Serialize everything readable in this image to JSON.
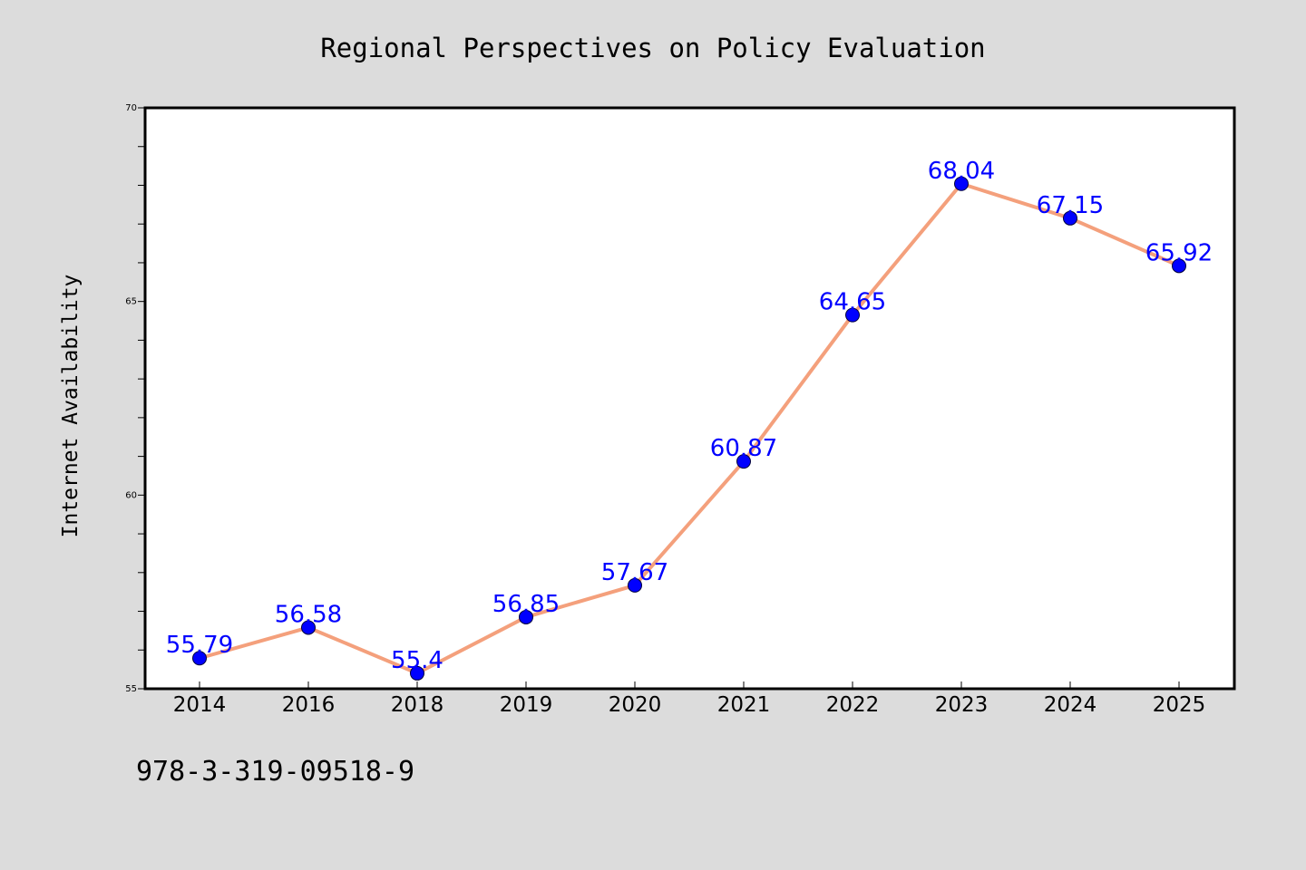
{
  "note": "978-3-319-09518-9",
  "colors": {
    "background": "#dcdcdc",
    "plot_background": "#ffffff",
    "line": "#f4a07c",
    "marker": "#0000ff",
    "data_label": "#0000ff"
  },
  "chart_data": {
    "type": "line",
    "title": "Regional Perspectives on Policy Evaluation",
    "xlabel": "",
    "ylabel": "Internet Availability",
    "categories": [
      "2014",
      "2016",
      "2018",
      "2019",
      "2020",
      "2021",
      "2022",
      "2023",
      "2024",
      "2025"
    ],
    "series": [
      {
        "values": [
          55.79,
          56.58,
          55.4,
          56.85,
          57.67,
          60.87,
          64.65,
          68.04,
          67.15,
          65.92
        ],
        "labels": [
          "55.79",
          "56.58",
          "55.4",
          "56.85",
          "57.67",
          "60.87",
          "64.65",
          "68.04",
          "67.15",
          "65.92"
        ]
      }
    ],
    "ylim": [
      55,
      70
    ],
    "yticks": [
      55,
      60,
      65,
      70
    ],
    "yticks_minor_step": 1,
    "grid": false,
    "legend": "none"
  }
}
